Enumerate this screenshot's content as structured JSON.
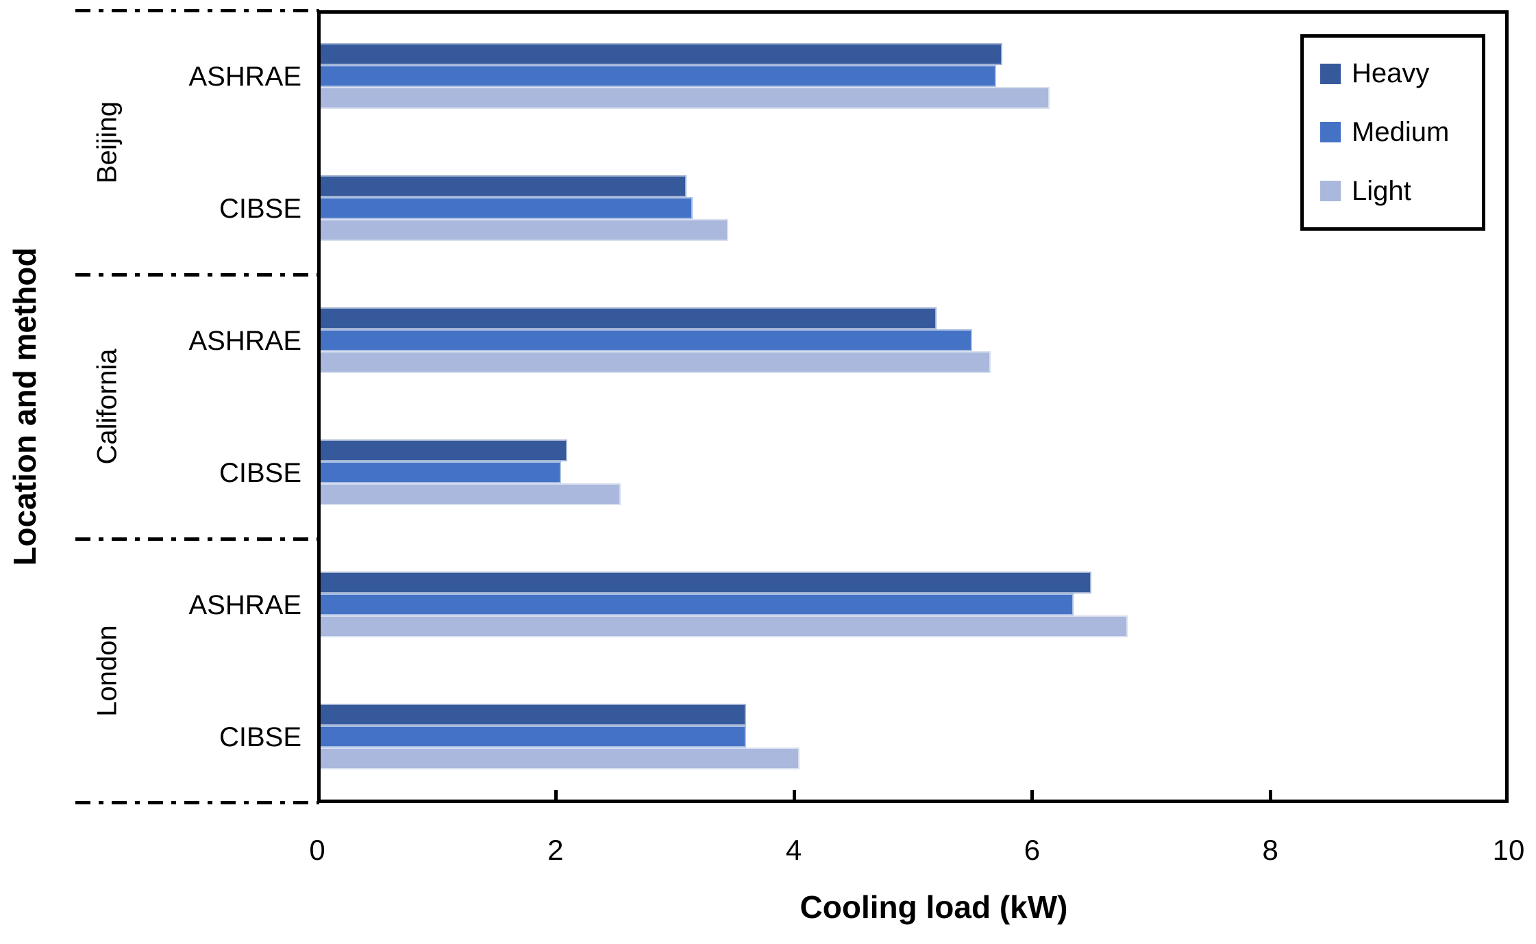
{
  "chart_data": {
    "type": "bar",
    "orientation": "horizontal",
    "xlabel": "Cooling load (kW)",
    "ylabel": "Location and method",
    "xlim": [
      0,
      10
    ],
    "xticks": [
      0,
      2,
      4,
      6,
      8,
      10
    ],
    "grid": false,
    "legend": {
      "position": "top-right",
      "entries": [
        "Heavy",
        "Medium",
        "Light"
      ]
    },
    "series_colors": {
      "Heavy": "#36599C",
      "Medium": "#4472C4",
      "Light": "#A9B8DC"
    },
    "series_order": [
      "Heavy",
      "Medium",
      "Light"
    ],
    "groups": [
      {
        "location": "Beijing",
        "methods": [
          {
            "label": "ASHRAE",
            "values": {
              "Heavy": 5.75,
              "Medium": 5.7,
              "Light": 6.15
            }
          },
          {
            "label": "CIBSE",
            "values": {
              "Heavy": 3.1,
              "Medium": 3.15,
              "Light": 3.45
            }
          }
        ]
      },
      {
        "location": "California",
        "methods": [
          {
            "label": "ASHRAE",
            "values": {
              "Heavy": 5.2,
              "Medium": 5.5,
              "Light": 5.65
            }
          },
          {
            "label": "CIBSE",
            "values": {
              "Heavy": 2.1,
              "Medium": 2.05,
              "Light": 2.55
            }
          }
        ]
      },
      {
        "location": "London",
        "methods": [
          {
            "label": "ASHRAE",
            "values": {
              "Heavy": 6.5,
              "Medium": 6.35,
              "Light": 6.8
            }
          },
          {
            "label": "CIBSE",
            "values": {
              "Heavy": 3.6,
              "Medium": 3.6,
              "Light": 4.05
            }
          }
        ]
      }
    ]
  }
}
